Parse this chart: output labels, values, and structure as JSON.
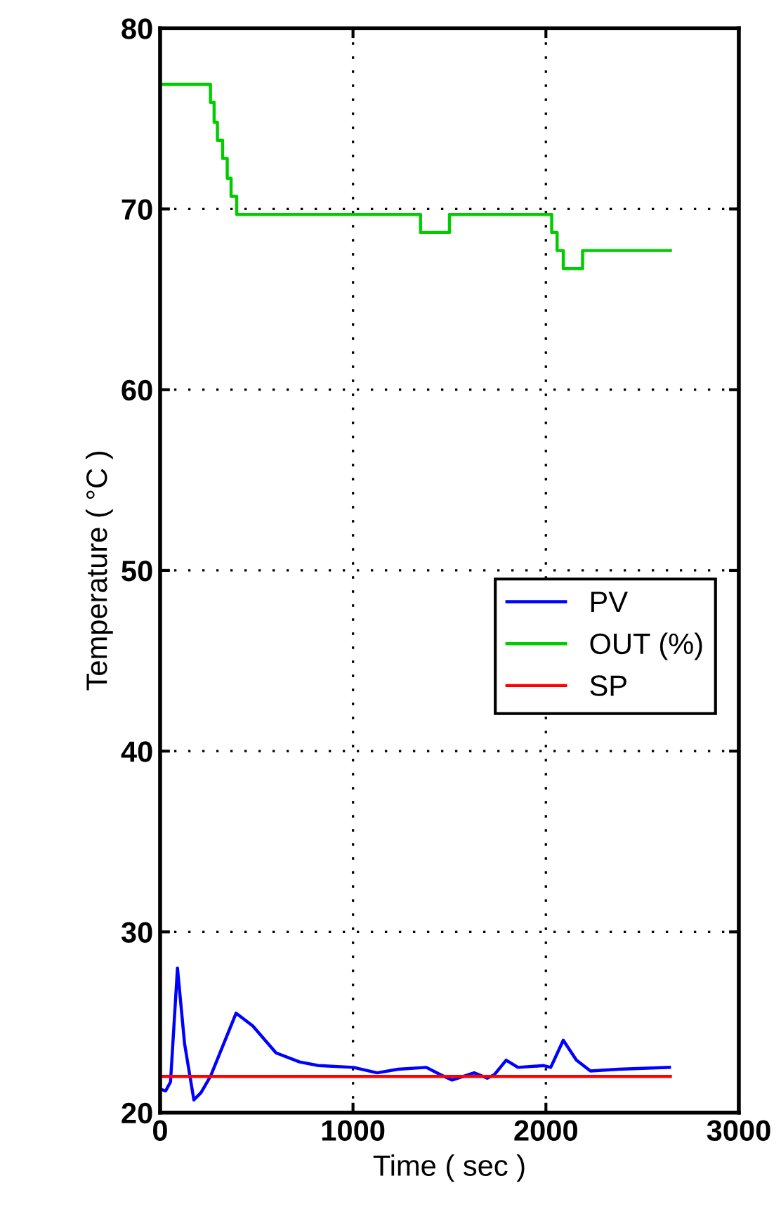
{
  "chart_data": {
    "type": "line",
    "xlabel": "Time ( sec )",
    "ylabel": "Temperature ( °C )",
    "xlim": [
      0,
      3000
    ],
    "ylim": [
      20,
      80
    ],
    "xticks": [
      0,
      1000,
      2000,
      3000
    ],
    "yticks": [
      20,
      30,
      40,
      50,
      60,
      70,
      80
    ],
    "grid": true,
    "legend": "right",
    "line_style": "solid",
    "series": [
      {
        "name": "PV",
        "color": "#0000ff",
        "x": [
          0,
          29,
          54,
          90,
          127,
          175,
          212,
          261,
          394,
          480,
          601,
          723,
          820,
          1003,
          1125,
          1234,
          1380,
          1453,
          1514,
          1628,
          1696,
          1733,
          1794,
          1855,
          1988,
          2025,
          2090,
          2158,
          2231,
          2377,
          2640
        ],
        "values": [
          21.3,
          21.2,
          21.7,
          28.0,
          23.8,
          20.7,
          21.1,
          22.0,
          25.5,
          24.8,
          23.3,
          22.8,
          22.6,
          22.5,
          22.2,
          22.4,
          22.5,
          22.1,
          21.8,
          22.2,
          21.9,
          22.1,
          22.9,
          22.5,
          22.6,
          22.5,
          24.0,
          22.9,
          22.3,
          22.4,
          22.5
        ]
      },
      {
        "name": "OUT (%)",
        "color": "#00cc00",
        "type": "step",
        "x": [
          0,
          261,
          280,
          297,
          324,
          348,
          368,
          397,
          1350,
          1500,
          2030,
          2058,
          2090,
          2190,
          2645
        ],
        "values": [
          76.9,
          75.9,
          74.8,
          73.8,
          72.8,
          71.7,
          70.7,
          69.7,
          68.7,
          69.7,
          68.7,
          67.7,
          66.7,
          67.7,
          67.7
        ]
      },
      {
        "name": "SP",
        "color": "#ff0000",
        "x": [
          0,
          2645
        ],
        "values": [
          22.0,
          22.0
        ]
      }
    ]
  }
}
